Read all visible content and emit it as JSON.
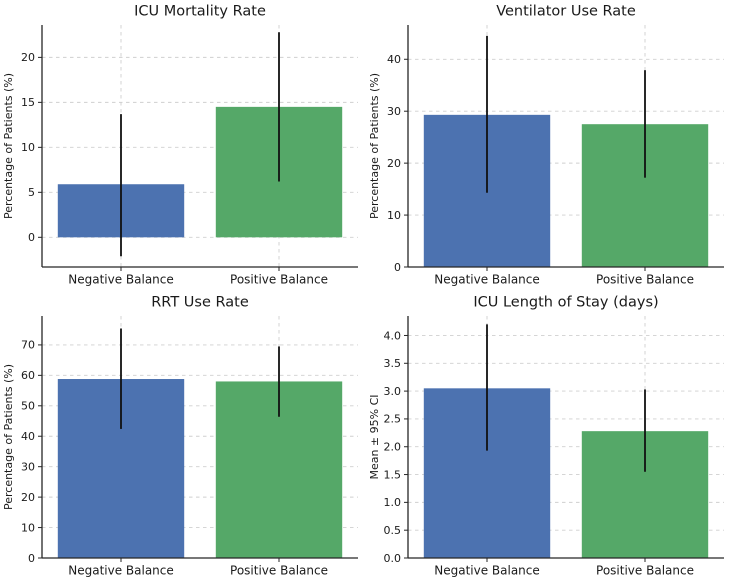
{
  "page": {
    "background": "#ffffff",
    "description": "2x2 grid of bar charts comparing Negative vs Positive fluid balance outcomes"
  },
  "style": {
    "grid_color": "#cfcfcf",
    "spine_color": "#262626",
    "text_color": "#1a1a1a",
    "error_bar_color": "#111111",
    "blue": "#4c72b0",
    "green": "#55a868"
  },
  "chart_data": [
    {
      "id": "icu-mortality-rate",
      "type": "bar",
      "title": "ICU Mortality Rate",
      "xlabel": "",
      "ylabel": "Percentage of Patients (%)",
      "categories": [
        "Negative Balance",
        "Positive Balance"
      ],
      "values": [
        5.9,
        14.5
      ],
      "error_low": [
        -2.1,
        6.2
      ],
      "error_high": [
        13.7,
        22.8
      ],
      "bar_colors": [
        "#4c72b0",
        "#55a868"
      ],
      "yticks": [
        0,
        5,
        10,
        15,
        20
      ],
      "ytick_labels": [
        "0",
        "5",
        "10",
        "15",
        "20"
      ],
      "ylim": [
        -3.3,
        23.6
      ],
      "grid": "dashed",
      "legend": null
    },
    {
      "id": "ventilator-use-rate",
      "type": "bar",
      "title": "Ventilator Use Rate",
      "xlabel": "",
      "ylabel": "Percentage of Patients (%)",
      "categories": [
        "Negative Balance",
        "Positive Balance"
      ],
      "values": [
        29.3,
        27.5
      ],
      "error_low": [
        14.3,
        17.2
      ],
      "error_high": [
        44.5,
        37.9
      ],
      "bar_colors": [
        "#4c72b0",
        "#55a868"
      ],
      "yticks": [
        0,
        10,
        20,
        30,
        40
      ],
      "ytick_labels": [
        "0",
        "10",
        "20",
        "30",
        "40"
      ],
      "ylim": [
        0,
        46.6
      ],
      "grid": "dashed",
      "legend": null
    },
    {
      "id": "rrt-use-rate",
      "type": "bar",
      "title": "RRT Use Rate",
      "xlabel": "",
      "ylabel": "Percentage of Patients (%)",
      "categories": [
        "Negative Balance",
        "Positive Balance"
      ],
      "values": [
        58.8,
        58.0
      ],
      "error_low": [
        42.4,
        46.4
      ],
      "error_high": [
        75.4,
        69.5
      ],
      "bar_colors": [
        "#4c72b0",
        "#55a868"
      ],
      "yticks": [
        0,
        10,
        20,
        30,
        40,
        50,
        60,
        70
      ],
      "ytick_labels": [
        "0",
        "10",
        "20",
        "30",
        "40",
        "50",
        "60",
        "70"
      ],
      "ylim": [
        0,
        79.5
      ],
      "grid": "dashed",
      "legend": null
    },
    {
      "id": "icu-length-of-stay",
      "type": "bar",
      "title": "ICU Length of Stay (days)",
      "xlabel": "",
      "ylabel": "Mean ± 95% CI",
      "categories": [
        "Negative Balance",
        "Positive Balance"
      ],
      "values": [
        3.05,
        2.28
      ],
      "error_low": [
        1.93,
        1.55
      ],
      "error_high": [
        4.2,
        3.03
      ],
      "bar_colors": [
        "#4c72b0",
        "#55a868"
      ],
      "yticks": [
        0,
        0.5,
        1.0,
        1.5,
        2.0,
        2.5,
        3.0,
        3.5,
        4.0
      ],
      "ytick_labels": [
        "0.0",
        "0.5",
        "1.0",
        "1.5",
        "2.0",
        "2.5",
        "3.0",
        "3.5",
        "4.0"
      ],
      "ylim": [
        0,
        4.35
      ],
      "grid": "dashed",
      "legend": null
    }
  ]
}
